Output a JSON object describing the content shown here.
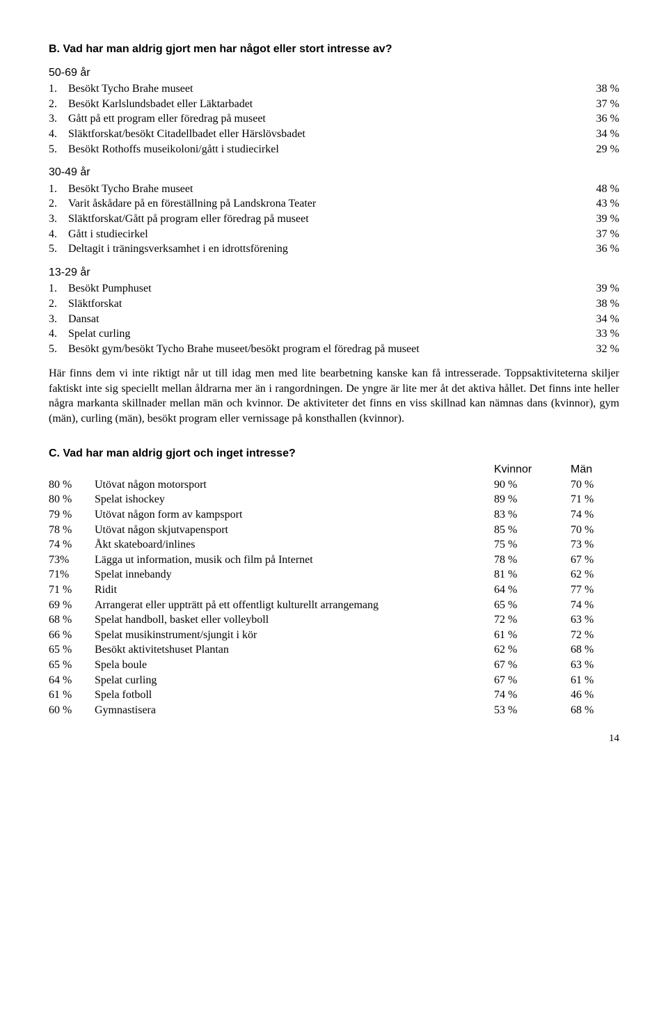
{
  "sectionB": {
    "title": "B. Vad har man aldrig gjort men har något eller stort intresse av?",
    "groups": [
      {
        "label": "50-69 år",
        "items": [
          {
            "n": "1.",
            "text": "Besökt Tycho Brahe museet",
            "pct": "38 %"
          },
          {
            "n": "2.",
            "text": "Besökt Karlslundsbadet eller Läktarbadet",
            "pct": "37 %"
          },
          {
            "n": "3.",
            "text": "Gått på ett program eller föredrag på museet",
            "pct": "36 %"
          },
          {
            "n": "4.",
            "text": "Släktforskat/besökt Citadellbadet eller Härslövsbadet",
            "pct": "34 %"
          },
          {
            "n": "5.",
            "text": "Besökt Rothoffs museikoloni/gått i studiecirkel",
            "pct": "29 %"
          }
        ]
      },
      {
        "label": "30-49 år",
        "items": [
          {
            "n": "1.",
            "text": "Besökt Tycho Brahe museet",
            "pct": "48 %"
          },
          {
            "n": "2.",
            "text": "Varit åskådare på en föreställning på Landskrona Teater",
            "pct": "43 %"
          },
          {
            "n": "3.",
            "text": "Släktforskat/Gått på program eller föredrag på museet",
            "pct": "39 %"
          },
          {
            "n": "4.",
            "text": "Gått i studiecirkel",
            "pct": "37 %"
          },
          {
            "n": "5.",
            "text": "Deltagit i träningsverksamhet i en idrottsförening",
            "pct": "36 %"
          }
        ]
      },
      {
        "label": "13-29 år",
        "items": [
          {
            "n": "1.",
            "text": "Besökt Pumphuset",
            "pct": "39 %"
          },
          {
            "n": "2.",
            "text": "Släktforskat",
            "pct": "38 %"
          },
          {
            "n": "3.",
            "text": "Dansat",
            "pct": "34 %"
          },
          {
            "n": "4.",
            "text": "Spelat curling",
            "pct": "33 %"
          },
          {
            "n": "5.",
            "text": "Besökt gym/besökt Tycho Brahe museet/besökt program el föredrag på museet",
            "pct": "32 %"
          }
        ]
      }
    ],
    "paragraph": "Här finns dem vi inte riktigt når ut till idag men med lite bearbetning kanske kan få intresserade. Toppsaktiviteterna skiljer faktiskt inte sig speciellt mellan åldrarna mer än i rangordningen. De yngre är lite mer åt det aktiva hållet. Det finns inte heller några markanta skillnader mellan män och kvinnor. De aktiviteter det finns en viss skillnad kan nämnas dans (kvinnor), gym (män), curling (män), besökt program eller vernissage på konsthallen (kvinnor)."
  },
  "sectionC": {
    "title": "C. Vad har man aldrig gjort och inget intresse?",
    "header": {
      "k": "Kvinnor",
      "m": "Män"
    },
    "rows": [
      {
        "left": "80 %",
        "text": "Utövat någon motorsport",
        "k": "90 %",
        "m": "70 %"
      },
      {
        "left": "80 %",
        "text": "Spelat ishockey",
        "k": "89 %",
        "m": "71 %"
      },
      {
        "left": "79 %",
        "text": "Utövat någon form av kampsport",
        "k": "83 %",
        "m": "74 %"
      },
      {
        "left": "78 %",
        "text": "Utövat någon skjutvapensport",
        "k": "85 %",
        "m": "70 %"
      },
      {
        "left": "74 %",
        "text": "Åkt skateboard/inlines",
        "k": "75 %",
        "m": "73 %"
      },
      {
        "left": "73%",
        "text": "Lägga ut information, musik och film på Internet",
        "k": "78 %",
        "m": "67 %"
      },
      {
        "left": "71%",
        "text": "Spelat innebandy",
        "k": "81 %",
        "m": "62 %"
      },
      {
        "left": "71 %",
        "text": "Ridit",
        "k": "64 %",
        "m": "77 %"
      },
      {
        "left": "69 %",
        "text": "Arrangerat eller uppträtt på ett offentligt kulturellt arrangemang",
        "k": "65 %",
        "m": "74 %"
      },
      {
        "left": "68 %",
        "text": "Spelat handboll, basket eller volleyboll",
        "k": "72 %",
        "m": "63 %"
      },
      {
        "left": "66 %",
        "text": "Spelat musikinstrument/sjungit i kör",
        "k": "61 %",
        "m": "72 %"
      },
      {
        "left": "65 %",
        "text": "Besökt aktivitetshuset Plantan",
        "k": "62 %",
        "m": "68 %"
      },
      {
        "left": "65 %",
        "text": "Spela boule",
        "k": "67 %",
        "m": "63 %"
      },
      {
        "left": "64 %",
        "text": "Spelat curling",
        "k": "67 %",
        "m": "61 %"
      },
      {
        "left": "61 %",
        "text": "Spela fotboll",
        "k": "74 %",
        "m": "46 %"
      },
      {
        "left": "60 %",
        "text": "Gymnastisera",
        "k": "53 %",
        "m": "68 %"
      }
    ]
  },
  "pageNumber": "14"
}
